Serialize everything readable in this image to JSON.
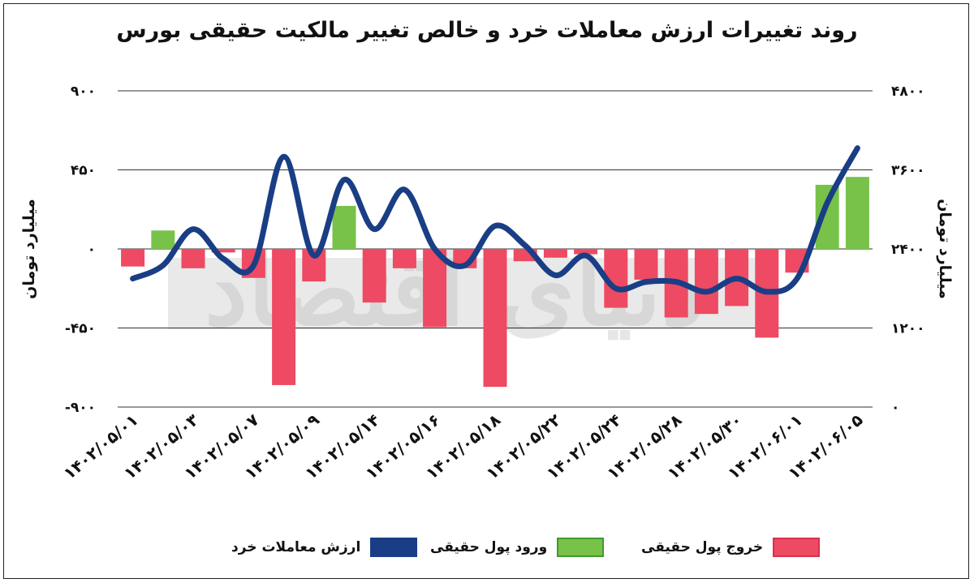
{
  "title": "روند تغییرات ارزش معاملات خرد و خالص تغییر مالکیت حقیقی بورس",
  "colors": {
    "inflow": "#78c24a",
    "outflow": "#ee4a63",
    "value_line": "#1a3e85",
    "grid": "#333333"
  },
  "watermark": "دنیای اقتصاد",
  "chart_data": {
    "type": "bar+line",
    "categories": [
      "۱۴۰۲/۰۵/۰۱",
      "",
      "۱۴۰۲/۰۵/۰۳",
      "",
      "۱۴۰۲/۰۵/۰۷",
      "",
      "۱۴۰۲/۰۵/۰۹",
      "",
      "۱۴۰۲/۰۵/۱۴",
      "",
      "۱۴۰۲/۰۵/۱۶",
      "",
      "۱۴۰۲/۰۵/۱۸",
      "",
      "۱۴۰۲/۰۵/۲۲",
      "",
      "۱۴۰۲/۰۵/۲۴",
      "",
      "۱۴۰۲/۰۵/۲۸",
      "",
      "۱۴۰۲/۰۵/۳۰",
      "",
      "۱۴۰۲/۰۶/۰۱",
      "",
      "۱۴۰۲/۰۶/۰۵"
    ],
    "xtick_labels": [
      "۱۴۰۲/۰۵/۰۱",
      "۱۴۰۲/۰۵/۰۳",
      "۱۴۰۲/۰۵/۰۷",
      "۱۴۰۲/۰۵/۰۹",
      "۱۴۰۲/۰۵/۱۴",
      "۱۴۰۲/۰۵/۱۶",
      "۱۴۰۲/۰۵/۱۸",
      "۱۴۰۲/۰۵/۲۲",
      "۱۴۰۲/۰۵/۲۴",
      "۱۴۰۲/۰۵/۲۸",
      "۱۴۰۲/۰۵/۳۰",
      "۱۴۰۲/۰۶/۰۱",
      "۱۴۰۲/۰۶/۰۵"
    ],
    "series": [
      {
        "name": "خروج پول حقیقی",
        "axis": "left",
        "type": "bar",
        "values": [
          -100,
          null,
          -110,
          -20,
          -165,
          -775,
          -185,
          null,
          -305,
          -110,
          -445,
          -110,
          -785,
          -70,
          -50,
          -30,
          -335,
          -175,
          -390,
          -370,
          -325,
          -505,
          -135,
          null,
          null
        ]
      },
      {
        "name": "ورود پول حقیقی",
        "axis": "left",
        "type": "bar",
        "values": [
          null,
          105,
          null,
          null,
          null,
          null,
          null,
          245,
          null,
          null,
          null,
          null,
          null,
          null,
          null,
          null,
          null,
          null,
          null,
          null,
          null,
          null,
          null,
          365,
          410
        ]
      },
      {
        "name": "ارزش معاملات خرد",
        "axis": "right",
        "type": "line",
        "values": [
          1950,
          2150,
          2700,
          2250,
          2150,
          3800,
          2300,
          3450,
          2700,
          3300,
          2400,
          2150,
          2750,
          2450,
          2000,
          2300,
          1800,
          1900,
          1900,
          1750,
          1950,
          1750,
          1950,
          3100,
          3930
        ]
      }
    ],
    "y_left": {
      "label": "میلیارد تومان",
      "min": -900,
      "max": 900,
      "ticks": [
        900,
        450,
        0,
        -450,
        -900
      ],
      "tick_labels": [
        "۹۰۰",
        "۴۵۰",
        "۰",
        "-۴۵۰",
        "-۹۰۰"
      ]
    },
    "y_right": {
      "label": "میلیارد تومان",
      "min": 0,
      "max": 4800,
      "ticks": [
        4800,
        3600,
        2400,
        1200,
        0
      ],
      "tick_labels": [
        "۴۸۰۰",
        "۳۶۰۰",
        "۲۴۰۰",
        "۱۲۰۰",
        "۰"
      ]
    },
    "grid": true,
    "legend": {
      "position": "bottom",
      "items": [
        {
          "label": "ارزش معاملات خرد",
          "key": "value_line"
        },
        {
          "label": "ورود پول حقیقی",
          "key": "inflow"
        },
        {
          "label": "خروج پول حقیقی",
          "key": "outflow"
        }
      ]
    }
  }
}
